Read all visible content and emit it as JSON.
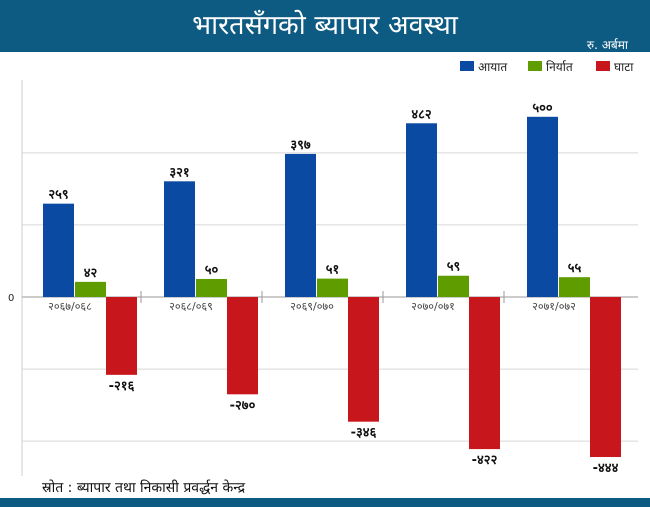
{
  "header": {
    "title": "भारतसँगको ब्यापार अवस्था",
    "unit": "रु. अर्बमा"
  },
  "colors": {
    "title_bar": "#0d5a82",
    "import": "#0b4aa2",
    "export": "#5e9c00",
    "deficit": "#c8161d"
  },
  "chart_data": {
    "type": "bar",
    "categories": [
      "२०६७/०६८",
      "२०६८/०६९",
      "२०६९/०७०",
      "२०७०/०७१",
      "२०७१/०७२"
    ],
    "series": [
      {
        "name": "आयात",
        "key": "import",
        "values": [
          259,
          321,
          397,
          482,
          500
        ],
        "labels": [
          "२५९",
          "३२१",
          "३९७",
          "४८२",
          "५००"
        ]
      },
      {
        "name": "निर्यात",
        "key": "export",
        "values": [
          42,
          50,
          51,
          59,
          55
        ],
        "labels": [
          "४२",
          "५०",
          "५१",
          "५९",
          "५५"
        ]
      },
      {
        "name": "घाटा",
        "key": "deficit",
        "values": [
          -216,
          -270,
          -346,
          -422,
          -444
        ],
        "labels": [
          "-२१६",
          "-२७०",
          "-३४६",
          "-४२२",
          "-४४४"
        ]
      }
    ],
    "zero_label": "0",
    "ylim": [
      -500,
      550
    ],
    "grid": true,
    "legend": "top-right"
  },
  "footer": {
    "source": "स्रोत : ब्यापार तथा निकासी प्रवर्द्धन केन्द्र"
  }
}
